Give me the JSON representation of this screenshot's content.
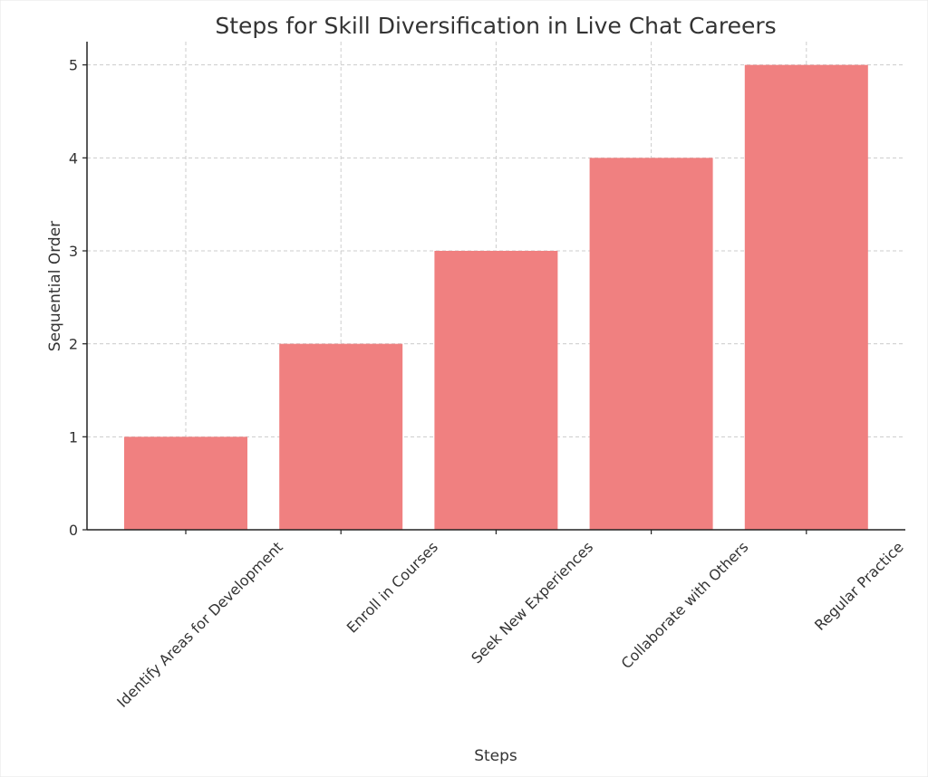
{
  "chart_data": {
    "type": "bar",
    "title": "Steps for Skill Diversification in Live Chat Careers",
    "xlabel": "Steps",
    "ylabel": "Sequential Order",
    "categories": [
      "Identify Areas for Development",
      "Enroll in Courses",
      "Seek New Experiences",
      "Collaborate with Others",
      "Regular Practice"
    ],
    "values": [
      1,
      2,
      3,
      4,
      5
    ],
    "ylim": [
      0,
      5.25
    ],
    "yticks": [
      0,
      1,
      2,
      3,
      4,
      5
    ],
    "grid": true,
    "bar_color": "#f08080"
  }
}
